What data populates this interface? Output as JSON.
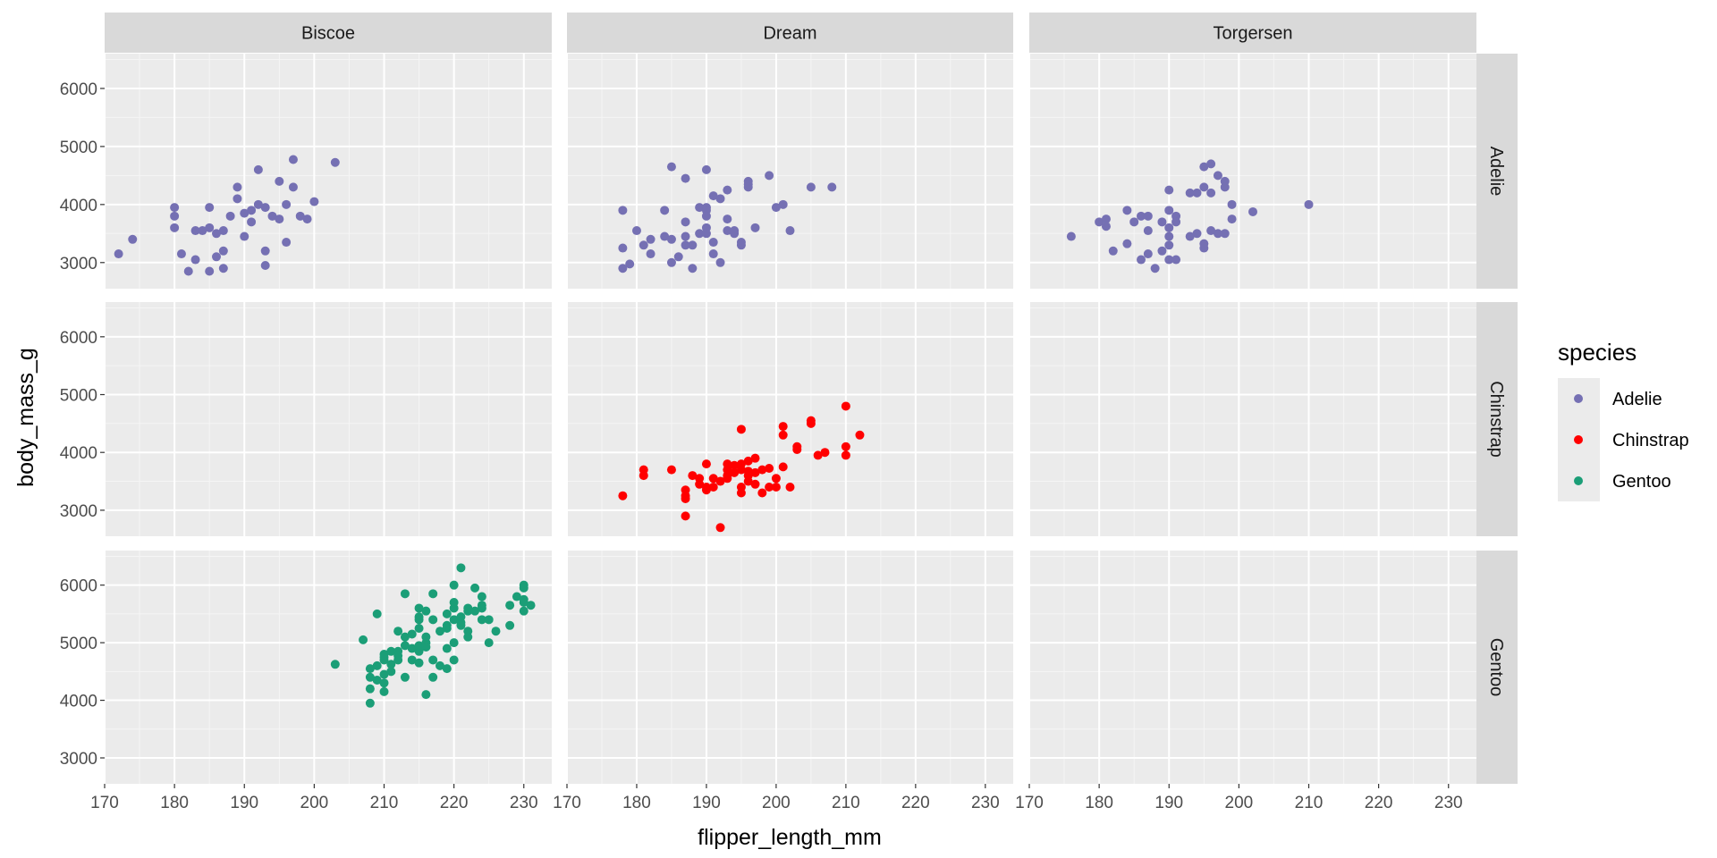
{
  "chart_data": {
    "type": "scatter",
    "facet_cols": [
      "Biscoe",
      "Dream",
      "Torgersen"
    ],
    "facet_rows": [
      "Adelie",
      "Chinstrap",
      "Gentoo"
    ],
    "xlabel": "flipper_length_mm",
    "ylabel": "body_mass_g",
    "xlim": [
      170,
      234
    ],
    "ylim": [
      2550,
      6600
    ],
    "x_ticks": [
      170,
      180,
      190,
      200,
      210,
      220,
      230
    ],
    "y_ticks": [
      3000,
      4000,
      5000,
      6000
    ],
    "grid": true,
    "legend": {
      "title": "species",
      "position": "right",
      "entries": [
        {
          "name": "Adelie",
          "color": "#7570b3"
        },
        {
          "name": "Chinstrap",
          "color": "#ff0000"
        },
        {
          "name": "Gentoo",
          "color": "#1b9e77"
        }
      ]
    },
    "panels": [
      {
        "island": "Biscoe",
        "species": "Adelie",
        "points": [
          [
            172,
            3150
          ],
          [
            174,
            3400
          ],
          [
            180,
            3950
          ],
          [
            180,
            3800
          ],
          [
            180,
            3600
          ],
          [
            181,
            3150
          ],
          [
            182,
            2850
          ],
          [
            183,
            3550
          ],
          [
            183,
            3050
          ],
          [
            184,
            3550
          ],
          [
            185,
            3600
          ],
          [
            185,
            3950
          ],
          [
            185,
            2850
          ],
          [
            186,
            3500
          ],
          [
            186,
            3100
          ],
          [
            187,
            3550
          ],
          [
            187,
            3200
          ],
          [
            187,
            2900
          ],
          [
            188,
            3800
          ],
          [
            189,
            4100
          ],
          [
            189,
            4300
          ],
          [
            190,
            3850
          ],
          [
            190,
            3450
          ],
          [
            191,
            3900
          ],
          [
            191,
            3700
          ],
          [
            192,
            4600
          ],
          [
            192,
            4000
          ],
          [
            193,
            3950
          ],
          [
            193,
            3200
          ],
          [
            194,
            3800
          ],
          [
            193,
            2950
          ],
          [
            195,
            3750
          ],
          [
            195,
            4400
          ],
          [
            196,
            3350
          ],
          [
            196,
            4000
          ],
          [
            197,
            4300
          ],
          [
            197,
            4775
          ],
          [
            198,
            3800
          ],
          [
            199,
            3750
          ],
          [
            200,
            4050
          ],
          [
            203,
            4725
          ]
        ]
      },
      {
        "island": "Dream",
        "species": "Adelie",
        "points": [
          [
            178,
            3900
          ],
          [
            178,
            3250
          ],
          [
            178,
            2900
          ],
          [
            179,
            2975
          ],
          [
            180,
            3550
          ],
          [
            181,
            3300
          ],
          [
            182,
            3150
          ],
          [
            182,
            3400
          ],
          [
            184,
            3450
          ],
          [
            184,
            3900
          ],
          [
            185,
            3400
          ],
          [
            185,
            4650
          ],
          [
            185,
            3000
          ],
          [
            186,
            3100
          ],
          [
            187,
            4450
          ],
          [
            187,
            3450
          ],
          [
            187,
            3300
          ],
          [
            187,
            3700
          ],
          [
            188,
            2900
          ],
          [
            188,
            3300
          ],
          [
            189,
            3500
          ],
          [
            189,
            3950
          ],
          [
            190,
            3950
          ],
          [
            190,
            3900
          ],
          [
            190,
            4600
          ],
          [
            190,
            3800
          ],
          [
            190,
            3600
          ],
          [
            190,
            3500
          ],
          [
            191,
            4150
          ],
          [
            191,
            3350
          ],
          [
            191,
            3150
          ],
          [
            192,
            4100
          ],
          [
            192,
            3000
          ],
          [
            193,
            3550
          ],
          [
            193,
            3750
          ],
          [
            193,
            4250
          ],
          [
            194,
            3500
          ],
          [
            194,
            3550
          ],
          [
            195,
            3300
          ],
          [
            195,
            3350
          ],
          [
            196,
            4400
          ],
          [
            196,
            4300
          ],
          [
            196,
            4350
          ],
          [
            197,
            3600
          ],
          [
            199,
            4500
          ],
          [
            200,
            3950
          ],
          [
            201,
            4000
          ],
          [
            202,
            3550
          ],
          [
            205,
            4300
          ],
          [
            208,
            4300
          ]
        ]
      },
      {
        "island": "Torgersen",
        "species": "Adelie",
        "points": [
          [
            176,
            3450
          ],
          [
            180,
            3700
          ],
          [
            181,
            3625
          ],
          [
            181,
            3750
          ],
          [
            182,
            3200
          ],
          [
            184,
            3325
          ],
          [
            184,
            3900
          ],
          [
            185,
            3700
          ],
          [
            186,
            3800
          ],
          [
            186,
            3050
          ],
          [
            187,
            3150
          ],
          [
            187,
            3800
          ],
          [
            187,
            3550
          ],
          [
            188,
            2900
          ],
          [
            189,
            3200
          ],
          [
            189,
            3700
          ],
          [
            190,
            3450
          ],
          [
            190,
            4250
          ],
          [
            190,
            3900
          ],
          [
            190,
            3050
          ],
          [
            190,
            3300
          ],
          [
            190,
            3600
          ],
          [
            191,
            3800
          ],
          [
            191,
            3050
          ],
          [
            191,
            3700
          ],
          [
            193,
            3450
          ],
          [
            193,
            4200
          ],
          [
            194,
            3500
          ],
          [
            194,
            4200
          ],
          [
            195,
            4300
          ],
          [
            195,
            3250
          ],
          [
            195,
            3325
          ],
          [
            195,
            4650
          ],
          [
            196,
            4700
          ],
          [
            196,
            3550
          ],
          [
            196,
            4200
          ],
          [
            197,
            4500
          ],
          [
            197,
            3500
          ],
          [
            198,
            4400
          ],
          [
            198,
            3500
          ],
          [
            198,
            4300
          ],
          [
            199,
            4000
          ],
          [
            199,
            3750
          ],
          [
            202,
            3875
          ],
          [
            210,
            4000
          ]
        ]
      },
      {
        "island": "Dream",
        "species": "Chinstrap",
        "points": [
          [
            178,
            3250
          ],
          [
            181,
            3700
          ],
          [
            181,
            3600
          ],
          [
            185,
            3700
          ],
          [
            187,
            2900
          ],
          [
            187,
            3350
          ],
          [
            187,
            3250
          ],
          [
            187,
            3200
          ],
          [
            188,
            3600
          ],
          [
            189,
            3450
          ],
          [
            189,
            3550
          ],
          [
            190,
            3400
          ],
          [
            190,
            3800
          ],
          [
            190,
            3350
          ],
          [
            191,
            3400
          ],
          [
            191,
            3550
          ],
          [
            192,
            2700
          ],
          [
            192,
            3500
          ],
          [
            193,
            3800
          ],
          [
            193,
            3550
          ],
          [
            193,
            3700
          ],
          [
            193,
            3600
          ],
          [
            194,
            3650
          ],
          [
            194,
            3775
          ],
          [
            195,
            3400
          ],
          [
            195,
            4400
          ],
          [
            195,
            3300
          ],
          [
            195,
            3700
          ],
          [
            195,
            3800
          ],
          [
            196,
            3850
          ],
          [
            196,
            3600
          ],
          [
            196,
            3675
          ],
          [
            196,
            3500
          ],
          [
            197,
            3450
          ],
          [
            197,
            3650
          ],
          [
            197,
            3900
          ],
          [
            198,
            3300
          ],
          [
            198,
            3700
          ],
          [
            199,
            3400
          ],
          [
            199,
            3725
          ],
          [
            200,
            3400
          ],
          [
            200,
            3550
          ],
          [
            201,
            4450
          ],
          [
            201,
            4300
          ],
          [
            201,
            3750
          ],
          [
            202,
            3400
          ],
          [
            203,
            4050
          ],
          [
            203,
            4100
          ],
          [
            205,
            4500
          ],
          [
            205,
            4550
          ],
          [
            206,
            3950
          ],
          [
            207,
            4000
          ],
          [
            210,
            4800
          ],
          [
            210,
            4100
          ],
          [
            210,
            3950
          ],
          [
            212,
            4300
          ]
        ]
      },
      {
        "island": "Biscoe",
        "species": "Gentoo",
        "points": [
          [
            203,
            4625
          ],
          [
            207,
            5050
          ],
          [
            208,
            3950
          ],
          [
            208,
            4200
          ],
          [
            208,
            4550
          ],
          [
            208,
            4400
          ],
          [
            209,
            4600
          ],
          [
            209,
            5500
          ],
          [
            209,
            4350
          ],
          [
            210,
            4450
          ],
          [
            210,
            4300
          ],
          [
            210,
            4800
          ],
          [
            210,
            4150
          ],
          [
            210,
            4700
          ],
          [
            210,
            4750
          ],
          [
            211,
            4500
          ],
          [
            211,
            4850
          ],
          [
            211,
            4625
          ],
          [
            212,
            4700
          ],
          [
            212,
            4850
          ],
          [
            212,
            5200
          ],
          [
            212,
            4775
          ],
          [
            213,
            4400
          ],
          [
            213,
            4950
          ],
          [
            213,
            5850
          ],
          [
            213,
            5100
          ],
          [
            214,
            4900
          ],
          [
            214,
            4700
          ],
          [
            214,
            5150
          ],
          [
            215,
            5450
          ],
          [
            215,
            5600
          ],
          [
            215,
            4650
          ],
          [
            215,
            4850
          ],
          [
            215,
            5250
          ],
          [
            215,
            4950
          ],
          [
            215,
            5400
          ],
          [
            216,
            5000
          ],
          [
            216,
            5550
          ],
          [
            216,
            4925
          ],
          [
            216,
            4100
          ],
          [
            216,
            5100
          ],
          [
            217,
            4400
          ],
          [
            217,
            4700
          ],
          [
            217,
            5400
          ],
          [
            217,
            5850
          ],
          [
            218,
            4600
          ],
          [
            218,
            5200
          ],
          [
            219,
            4900
          ],
          [
            219,
            5300
          ],
          [
            219,
            5500
          ],
          [
            219,
            5250
          ],
          [
            219,
            4550
          ],
          [
            220,
            5400
          ],
          [
            220,
            5600
          ],
          [
            220,
            5000
          ],
          [
            220,
            5700
          ],
          [
            220,
            4700
          ],
          [
            220,
            6000
          ],
          [
            221,
            6300
          ],
          [
            221,
            5350
          ],
          [
            221,
            5450
          ],
          [
            221,
            5300
          ],
          [
            222,
            5550
          ],
          [
            222,
            5200
          ],
          [
            222,
            5600
          ],
          [
            222,
            5100
          ],
          [
            223,
            5950
          ],
          [
            223,
            5550
          ],
          [
            224,
            5600
          ],
          [
            224,
            5650
          ],
          [
            224,
            5800
          ],
          [
            224,
            5400
          ],
          [
            225,
            5400
          ],
          [
            225,
            5000
          ],
          [
            226,
            5200
          ],
          [
            228,
            5650
          ],
          [
            228,
            5300
          ],
          [
            229,
            5800
          ],
          [
            230,
            5750
          ],
          [
            230,
            6000
          ],
          [
            230,
            5550
          ],
          [
            230,
            5700
          ],
          [
            230,
            5950
          ],
          [
            231,
            5650
          ]
        ]
      }
    ]
  }
}
